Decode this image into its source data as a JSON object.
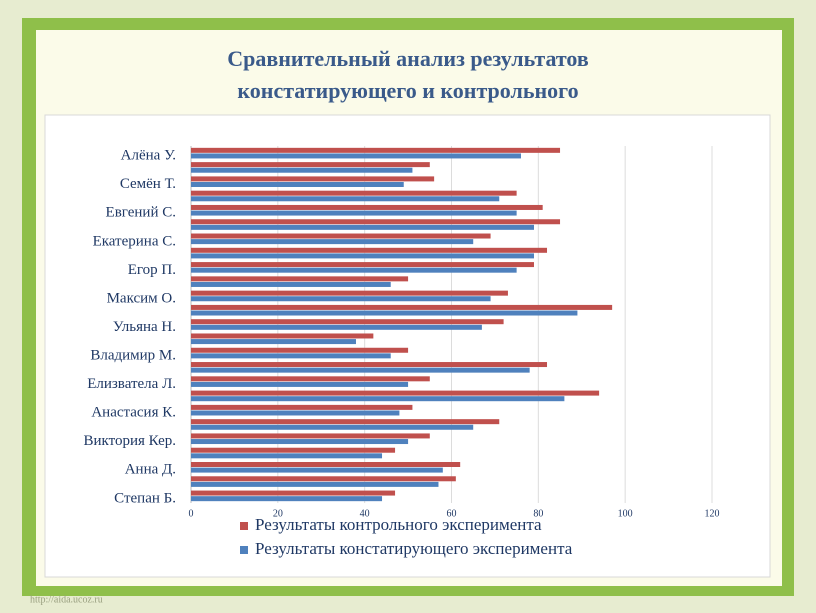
{
  "chart_data": {
    "type": "hbar",
    "title_lines": [
      "Сравнительный анализ результатов",
      "констатирующего и контрольного"
    ],
    "watermark": "http://aida.ucoz.ru",
    "categories": [
      "Алёна У.",
      null,
      "Семён Т.",
      null,
      "Евгений С.",
      null,
      "Екатерина С.",
      null,
      "Егор П.",
      null,
      "Максим О.",
      null,
      "Ульяна Н.",
      null,
      "Владимир М.",
      null,
      "Елизватела Л.",
      null,
      "Анастасия  К.",
      null,
      "Виктория Кер.",
      null,
      "Анна Д.",
      null,
      "Степан Б."
    ],
    "series": [
      {
        "name": "Результаты контрольного эксперимента",
        "color": "#c0504d",
        "values": [
          85,
          55,
          56,
          75,
          81,
          85,
          69,
          82,
          79,
          50,
          73,
          97,
          72,
          42,
          50,
          82,
          55,
          94,
          51,
          71,
          55,
          47,
          62,
          61,
          47
        ]
      },
      {
        "name": "Результаты констатирующего эксперимента",
        "color": "#4f81bd",
        "values": [
          76,
          51,
          49,
          71,
          75,
          79,
          65,
          79,
          75,
          46,
          69,
          89,
          67,
          38,
          46,
          78,
          50,
          86,
          48,
          65,
          50,
          44,
          58,
          57,
          44
        ]
      }
    ],
    "xlim": [
      0,
      120
    ],
    "xticks": [
      0,
      20,
      40,
      60,
      80,
      100,
      120
    ],
    "grid": true
  }
}
